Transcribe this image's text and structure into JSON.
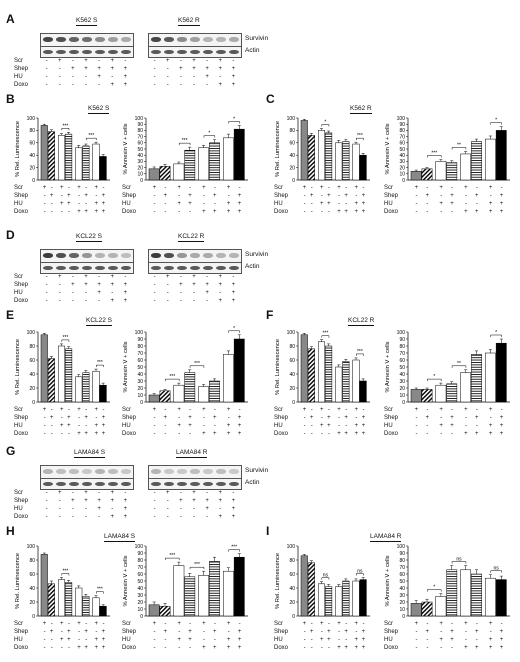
{
  "figure": {
    "panel_letters": [
      "A",
      "B",
      "C",
      "D",
      "E",
      "F",
      "G",
      "H",
      "I"
    ],
    "cell_lines": {
      "A_s": "K562 S",
      "A_r": "K562 R",
      "B": "K562 S",
      "C": "K562 R",
      "D_s": "KCL22 S",
      "D_r": "KCL22 R",
      "E": "KCL22 S",
      "F": "KCL22 R",
      "G_s": "LAMA84 S",
      "G_r": "LAMA84 R",
      "H": "LAMA84 S",
      "I": "LAMA84 R"
    },
    "blot_labels": {
      "survivin": "Survivin",
      "actin": "Actin"
    },
    "treatments": [
      "Scr",
      "Shep",
      "HU",
      "Doxo"
    ],
    "axis_labels": {
      "lum": "% Rel. Luminescence",
      "annexin": "% Annexin V + cells"
    },
    "blot_markers": [
      [
        "-",
        "+",
        "-",
        "+",
        "-",
        "+",
        "-"
      ],
      [
        "-",
        "-",
        "+",
        "+",
        "+",
        "+",
        "+"
      ],
      [
        "-",
        "-",
        "-",
        "-",
        "+",
        "-",
        "+"
      ],
      [
        "-",
        "-",
        "-",
        "-",
        "-",
        "+",
        "+"
      ]
    ],
    "chart_markers": [
      [
        "+",
        "-",
        "+",
        "-",
        "+",
        "-",
        "+",
        "-"
      ],
      [
        "-",
        "+",
        "-",
        "+",
        "-",
        "+",
        "-",
        "+"
      ],
      [
        "-",
        "-",
        "+",
        "+",
        "-",
        "-",
        "+",
        "+"
      ],
      [
        "-",
        "-",
        "-",
        "-",
        "+",
        "+",
        "+",
        "+"
      ]
    ]
  },
  "chart_data": [
    {
      "panel": "B",
      "type": "bar",
      "ylabel": "% Rel. Luminescence",
      "ylim": [
        0,
        100
      ],
      "ticks": [
        0,
        20,
        40,
        60,
        80,
        100
      ],
      "values": [
        88,
        78,
        72,
        74,
        52,
        55,
        58,
        38
      ],
      "errors": [
        2,
        3,
        3,
        3,
        4,
        3,
        3,
        3
      ],
      "sig": [
        [
          "***",
          3,
          4
        ],
        [
          "***",
          6,
          7
        ]
      ]
    },
    {
      "panel": "B",
      "type": "bar",
      "ylabel": "% Annexin V + cells",
      "ylim": [
        0,
        100
      ],
      "ticks": [
        0,
        10,
        20,
        30,
        40,
        50,
        60,
        70,
        80,
        90,
        100
      ],
      "values": [
        18,
        22,
        26,
        48,
        52,
        60,
        68,
        82
      ],
      "errors": [
        3,
        3,
        3,
        5,
        4,
        5,
        6,
        6
      ],
      "sig": [
        [
          "***",
          3,
          4
        ],
        [
          "*",
          5,
          6
        ],
        [
          "*",
          7,
          8
        ]
      ]
    },
    {
      "panel": "C",
      "type": "bar",
      "ylabel": "% Rel. Luminescence",
      "ylim": [
        0,
        100
      ],
      "ticks": [
        0,
        20,
        40,
        60,
        80,
        100
      ],
      "values": [
        96,
        72,
        80,
        76,
        60,
        62,
        58,
        40
      ],
      "errors": [
        2,
        3,
        3,
        3,
        4,
        3,
        3,
        3
      ],
      "sig": [
        [
          "*",
          3,
          4
        ],
        [
          "***",
          7,
          8
        ]
      ]
    },
    {
      "panel": "C",
      "type": "bar",
      "ylabel": "% Annexin V + cells",
      "ylim": [
        0,
        100
      ],
      "ticks": [
        0,
        10,
        20,
        30,
        40,
        50,
        60,
        70,
        80,
        90,
        100
      ],
      "values": [
        14,
        18,
        30,
        28,
        42,
        62,
        66,
        80
      ],
      "errors": [
        2,
        2,
        3,
        3,
        4,
        4,
        5,
        6
      ],
      "sig": [
        [
          "***",
          2,
          3
        ],
        [
          "**",
          4,
          5
        ],
        [
          "*",
          7,
          8
        ]
      ]
    },
    {
      "panel": "E",
      "type": "bar",
      "ylabel": "% Rel. Luminescence",
      "ylim": [
        0,
        100
      ],
      "ticks": [
        0,
        20,
        40,
        60,
        80,
        100
      ],
      "values": [
        96,
        62,
        80,
        76,
        36,
        42,
        44,
        24
      ],
      "errors": [
        2,
        3,
        3,
        3,
        3,
        3,
        3,
        3
      ],
      "sig": [
        [
          "***",
          3,
          4
        ],
        [
          "***",
          7,
          8
        ]
      ]
    },
    {
      "panel": "E",
      "type": "bar",
      "ylabel": "% Annexin V + cells",
      "ylim": [
        0,
        100
      ],
      "ticks": [
        0,
        10,
        20,
        30,
        40,
        50,
        60,
        70,
        80,
        90,
        100
      ],
      "values": [
        10,
        16,
        24,
        42,
        22,
        30,
        68,
        90
      ],
      "errors": [
        2,
        2,
        3,
        4,
        3,
        3,
        5,
        6
      ],
      "sig": [
        [
          "***",
          2,
          3
        ],
        [
          "***",
          4,
          5
        ],
        [
          "*",
          7,
          8
        ]
      ]
    },
    {
      "panel": "F",
      "type": "bar",
      "ylabel": "% Rel. Luminescence",
      "ylim": [
        0,
        100
      ],
      "ticks": [
        0,
        20,
        40,
        60,
        80,
        100
      ],
      "values": [
        96,
        76,
        86,
        80,
        50,
        58,
        60,
        30
      ],
      "errors": [
        2,
        3,
        3,
        3,
        3,
        3,
        3,
        3
      ],
      "sig": [
        [
          "***",
          3,
          4
        ],
        [
          "***",
          7,
          8
        ]
      ]
    },
    {
      "panel": "F",
      "type": "bar",
      "ylabel": "% Annexin V + cells",
      "ylim": [
        0,
        100
      ],
      "ticks": [
        0,
        10,
        20,
        30,
        40,
        50,
        60,
        70,
        80,
        90,
        100
      ],
      "values": [
        18,
        18,
        24,
        26,
        42,
        68,
        70,
        84
      ],
      "errors": [
        2,
        2,
        3,
        3,
        4,
        5,
        5,
        6
      ],
      "sig": [
        [
          "*",
          2,
          3
        ],
        [
          "**",
          4,
          5
        ],
        [
          "*",
          7,
          8
        ]
      ]
    },
    {
      "panel": "H",
      "type": "bar",
      "ylabel": "% Rel. Luminescence",
      "ylim": [
        0,
        100
      ],
      "ticks": [
        0,
        20,
        40,
        60,
        80,
        100
      ],
      "values": [
        88,
        46,
        52,
        48,
        40,
        28,
        26,
        14
      ],
      "errors": [
        2,
        4,
        3,
        3,
        3,
        3,
        3,
        2
      ],
      "sig": [
        [
          "***",
          3,
          4
        ],
        [
          "***",
          7,
          8
        ]
      ]
    },
    {
      "panel": "H",
      "type": "bar",
      "ylabel": "% Annexin V + cells",
      "ylim": [
        0,
        100
      ],
      "ticks": [
        0,
        10,
        20,
        30,
        40,
        50,
        60,
        70,
        80,
        90,
        100
      ],
      "values": [
        16,
        14,
        72,
        56,
        58,
        78,
        64,
        84
      ],
      "errors": [
        4,
        4,
        5,
        5,
        6,
        6,
        5,
        5
      ],
      "sig": [
        [
          "***",
          2,
          3
        ],
        [
          "***",
          4,
          5
        ],
        [
          "***",
          7,
          8
        ]
      ]
    },
    {
      "panel": "I",
      "type": "bar",
      "ylabel": "% Rel. Luminescence",
      "ylim": [
        0,
        100
      ],
      "ticks": [
        0,
        20,
        40,
        60,
        80,
        100
      ],
      "values": [
        86,
        76,
        46,
        42,
        42,
        50,
        50,
        52
      ],
      "errors": [
        2,
        3,
        3,
        3,
        3,
        3,
        3,
        3
      ],
      "sig": [
        [
          "ns",
          3,
          4
        ],
        [
          "ns",
          7,
          8
        ]
      ]
    },
    {
      "panel": "I",
      "type": "bar",
      "ylabel": "% Annexin V + cells",
      "ylim": [
        0,
        100
      ],
      "ticks": [
        0,
        10,
        20,
        30,
        40,
        50,
        60,
        70,
        80,
        90,
        100
      ],
      "values": [
        18,
        20,
        28,
        66,
        66,
        60,
        54,
        52
      ],
      "errors": [
        4,
        4,
        4,
        6,
        6,
        6,
        5,
        5
      ],
      "sig": [
        [
          "*",
          2,
          3
        ],
        [
          "ns",
          4,
          5
        ],
        [
          "ns",
          7,
          8
        ]
      ]
    }
  ]
}
